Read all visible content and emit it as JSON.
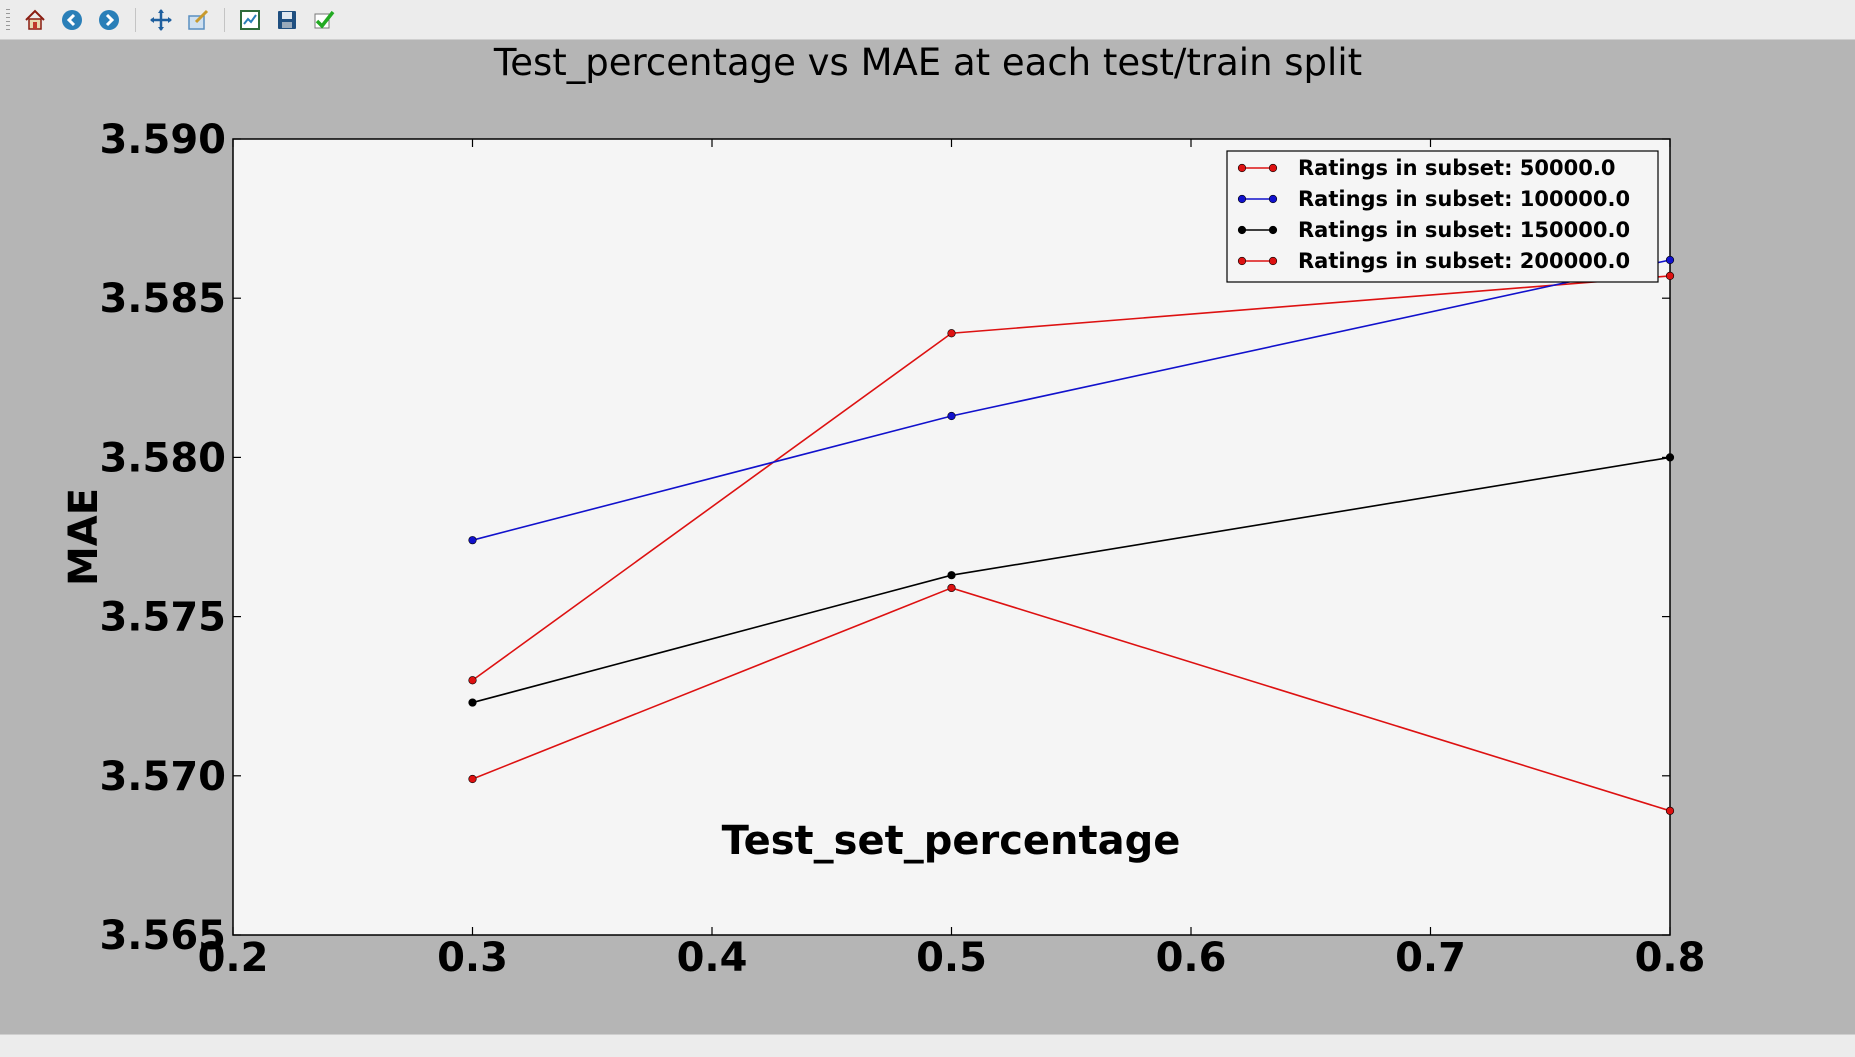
{
  "toolbar": {
    "buttons": [
      {
        "name": "home-icon",
        "color": "#c0392b"
      },
      {
        "name": "back-icon",
        "color": "#2a7fb8"
      },
      {
        "name": "forward-icon",
        "color": "#2a7fb8"
      },
      {
        "name": "pan-icon",
        "color": "#1f5f9e"
      },
      {
        "name": "zoom-icon",
        "color": "#5a8fc0"
      },
      {
        "name": "subplots-icon",
        "color": "#2e6b3a"
      },
      {
        "name": "save-icon",
        "color": "#1f4f80"
      },
      {
        "name": "edit-axes-icon",
        "color": "#22aa22"
      }
    ]
  },
  "colors": {
    "figure_bg": "#b5b5b5",
    "axes_bg": "#f5f5f5"
  },
  "chart_data": {
    "type": "line",
    "title": "Test_percentage vs MAE at each test/train split",
    "xlabel": "Test_set_percentage",
    "ylabel": "MAE",
    "xlim": [
      0.2,
      0.8
    ],
    "ylim": [
      3.565,
      3.59
    ],
    "xticks": [
      "0.2",
      "0.3",
      "0.4",
      "0.5",
      "0.6",
      "0.7",
      "0.8"
    ],
    "yticks": [
      "3.565",
      "3.570",
      "3.575",
      "3.580",
      "3.585",
      "3.590"
    ],
    "grid": false,
    "legend_position": "top-right",
    "x": [
      0.3,
      0.5,
      0.8
    ],
    "series": [
      {
        "name": "Ratings in subset: 50000.0",
        "color": "#dd1111",
        "values": [
          3.573,
          3.5839,
          3.5857
        ]
      },
      {
        "name": "Ratings in subset: 100000.0",
        "color": "#1111cc",
        "values": [
          3.5774,
          3.5813,
          3.5862
        ]
      },
      {
        "name": "Ratings in subset: 150000.0",
        "color": "#000000",
        "values": [
          3.5723,
          3.5763,
          3.58
        ]
      },
      {
        "name": "Ratings in subset: 200000.0",
        "color": "#dd1111",
        "values": [
          3.5699,
          3.5759,
          3.5689
        ]
      }
    ]
  }
}
